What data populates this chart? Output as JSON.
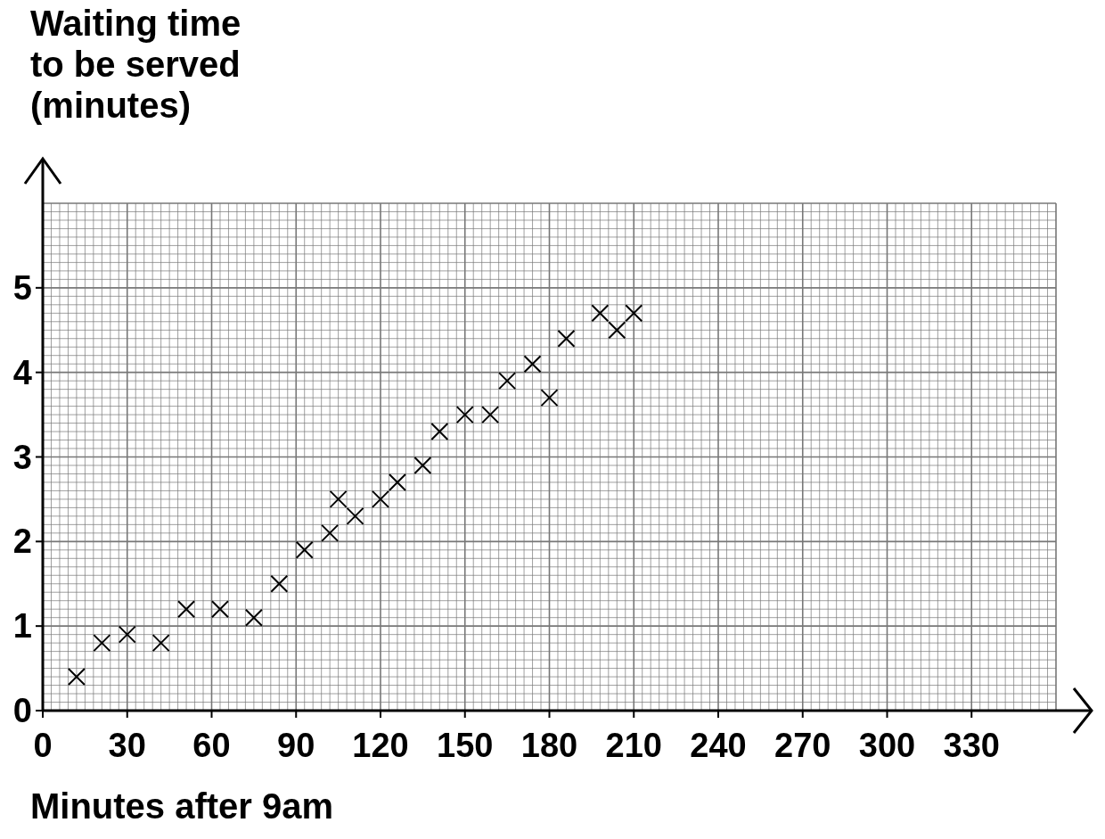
{
  "chart_data": {
    "type": "scatter",
    "xlabel": "Minutes after 9am",
    "ylabel": "Waiting time\nto be served\n(minutes)",
    "x": [
      12,
      21,
      30,
      42,
      51,
      63,
      75,
      84,
      93,
      102,
      105,
      111,
      120,
      126,
      135,
      141,
      150,
      159,
      165,
      174,
      180,
      186,
      198,
      204,
      210
    ],
    "series": [
      {
        "color": "#000000",
        "values": [
          0.4,
          0.8,
          0.9,
          0.8,
          1.2,
          1.2,
          1.1,
          1.5,
          1.9,
          2.1,
          2.5,
          2.3,
          2.5,
          2.7,
          2.9,
          3.3,
          3.5,
          3.5,
          3.9,
          4.1,
          3.7,
          4.4,
          4.7,
          4.5,
          4.7
        ]
      }
    ],
    "xlim": [
      0,
      360
    ],
    "xticks": [
      0,
      30,
      60,
      90,
      120,
      150,
      180,
      210,
      240,
      270,
      300,
      330
    ],
    "ylim": [
      0,
      6
    ],
    "yticks": [
      0,
      1,
      2,
      3,
      4,
      5
    ],
    "grid": true,
    "marker": "cross"
  }
}
